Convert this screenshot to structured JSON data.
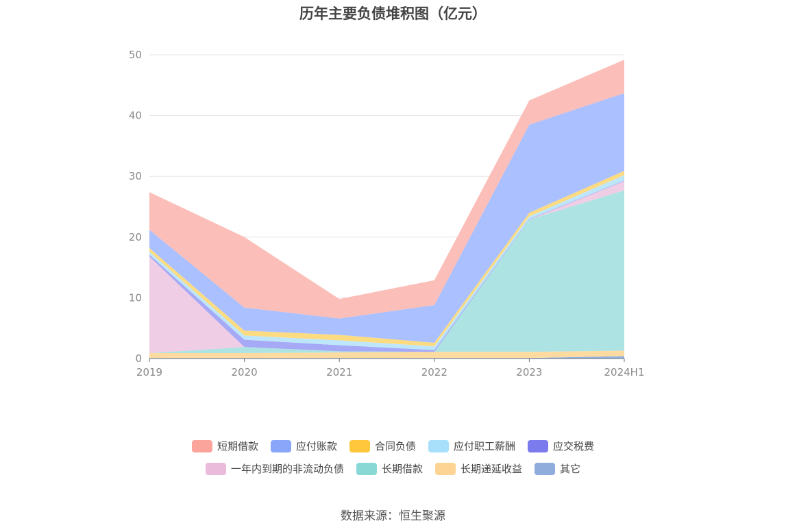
{
  "chart_data": {
    "type": "area",
    "stacked": true,
    "title": "历年主要负债堆积图（亿元）",
    "x": [
      "2019",
      "2020",
      "2021",
      "2022",
      "2023",
      "2024H1"
    ],
    "ylim": [
      0,
      50
    ],
    "yticks": [
      0,
      10,
      20,
      30,
      40,
      50
    ],
    "grid": true,
    "legend_position": "bottom",
    "series": [
      {
        "name": "其它",
        "color": "#8fb0e0",
        "values": [
          0.1,
          0.1,
          0.1,
          0.1,
          0.1,
          0.4
        ]
      },
      {
        "name": "长期递延收益",
        "color": "#fddba0",
        "values": [
          0.8,
          0.8,
          0.9,
          1.0,
          1.0,
          0.9
        ]
      },
      {
        "name": "长期借款",
        "color": "#aee3e3",
        "values": [
          0.0,
          1.0,
          0.2,
          0.0,
          21.8,
          26.4
        ]
      },
      {
        "name": "一年内到期的非流动负债",
        "color": "#efcde5",
        "values": [
          15.9,
          0.0,
          0.0,
          0.0,
          0.0,
          1.5
        ]
      },
      {
        "name": "应交税费",
        "color": "#a5a9f6",
        "values": [
          0.3,
          1.2,
          1.0,
          0.3,
          0.1,
          0.1
        ]
      },
      {
        "name": "应付职工薪酬",
        "color": "#bde6fa",
        "values": [
          0.5,
          0.7,
          0.8,
          0.6,
          0.4,
          0.9
        ]
      },
      {
        "name": "合同负债",
        "color": "#fddb80",
        "values": [
          0.6,
          0.8,
          0.9,
          0.6,
          0.6,
          0.7
        ]
      },
      {
        "name": "应付账款",
        "color": "#abc0fe",
        "values": [
          3.0,
          3.8,
          2.7,
          6.2,
          14.5,
          12.8
        ]
      },
      {
        "name": "短期借款",
        "color": "#fbbeb8",
        "values": [
          6.2,
          11.6,
          3.2,
          4.1,
          4.0,
          5.5
        ]
      }
    ]
  },
  "legend": {
    "row1": [
      {
        "label": "短期借款",
        "color": "#fba49b"
      },
      {
        "label": "应付账款",
        "color": "#89a6fb"
      },
      {
        "label": "合同负债",
        "color": "#fec73c"
      },
      {
        "label": "应付职工薪酬",
        "color": "#a8e0fb"
      },
      {
        "label": "应交税费",
        "color": "#7b7bee"
      }
    ],
    "row2": [
      {
        "label": "一年内到期的非流动负债",
        "color": "#ebbbdc"
      },
      {
        "label": "长期借款",
        "color": "#88d8d6"
      },
      {
        "label": "长期递延收益",
        "color": "#fed495"
      },
      {
        "label": "其它",
        "color": "#8facdc"
      }
    ]
  },
  "source": "数据来源：恒生聚源"
}
